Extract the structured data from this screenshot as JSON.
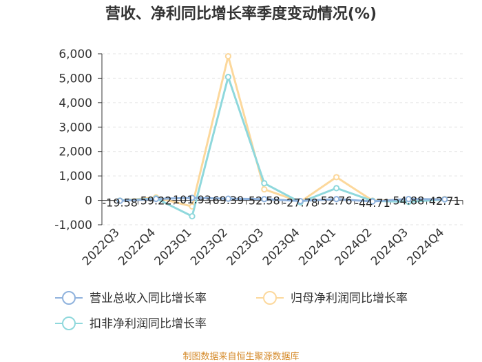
{
  "chart_data": {
    "type": "line",
    "title": "营收、净利同比增长率季度变动情况(%)",
    "categories": [
      "2022Q3",
      "2022Q4",
      "2023Q1",
      "2023Q2",
      "2023Q3",
      "2023Q4",
      "2024Q1",
      "2024Q2",
      "2024Q3",
      "2024Q4"
    ],
    "ylim": [
      -1000,
      6000
    ],
    "yticks": [
      -1000,
      0,
      1000,
      2000,
      3000,
      4000,
      5000,
      6000
    ],
    "ytick_labels": [
      "-1,000",
      "0",
      "1,000",
      "2,000",
      "3,000",
      "4,000",
      "5,000",
      "6,000"
    ],
    "grid": true,
    "legend_position": "bottom",
    "series": [
      {
        "name": "营业总收入同比增长率",
        "color": "#8fb2dd",
        "values": [
          -19.58,
          59.22,
          101.93,
          69.39,
          52.58,
          -27.78,
          52.76,
          -44.71,
          54.88,
          42.71
        ],
        "labels": [
          "-19.58",
          "59.22",
          "101.93",
          "69.39",
          "52.58",
          "-27.78",
          "52.76",
          "-44.71",
          "54.88",
          "42.71"
        ]
      },
      {
        "name": "归母净利润同比增长率",
        "color": "#fcd89c",
        "values": [
          -10,
          120,
          -250,
          5900,
          450,
          -60,
          950,
          -10,
          30,
          60
        ],
        "labels": []
      },
      {
        "name": "扣非净利润同比增长率",
        "color": "#8fd8dc",
        "values": [
          -10,
          80,
          -650,
          5050,
          700,
          -80,
          500,
          -20,
          -60,
          40
        ],
        "labels": []
      }
    ],
    "source": "制图数据来自恒生聚源数据库"
  }
}
